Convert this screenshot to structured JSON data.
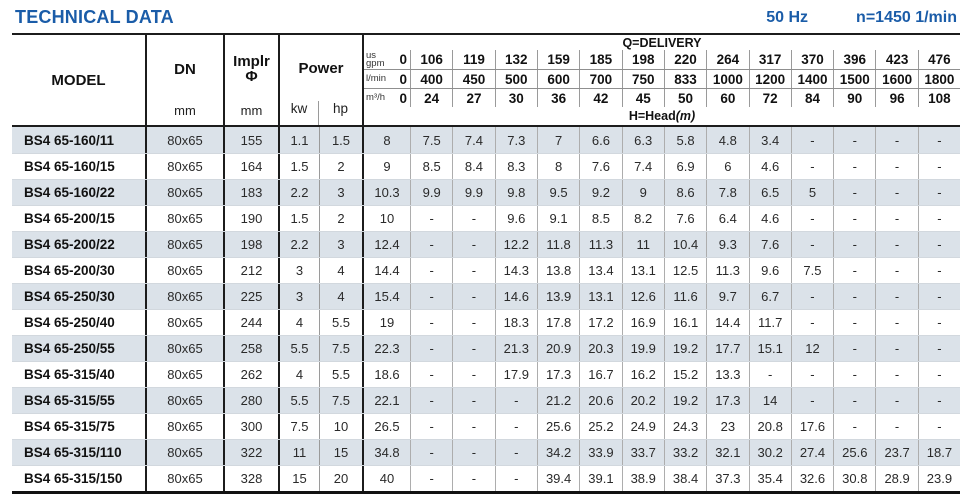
{
  "header": {
    "title": "TECHNICAL DATA",
    "frequency": "50 Hz",
    "speed": "n=1450 1/min"
  },
  "table": {
    "model_label": "MODEL",
    "dn_label": "DN",
    "dn_unit": "mm",
    "impeller_label": "Implr",
    "impeller_symbol": "Φ",
    "impeller_unit": "mm",
    "power_label": "Power",
    "power_unit_kw": "kw",
    "power_unit_hp": "hp",
    "delivery_label": "Q=DELIVERY",
    "head_label": "H=Head",
    "head_unit": "(m)",
    "flow_units": [
      {
        "top": "us",
        "label": "gpm",
        "zero": "0",
        "values": [
          "106",
          "119",
          "132",
          "159",
          "185",
          "198",
          "220",
          "264",
          "317",
          "370",
          "396",
          "423",
          "476"
        ]
      },
      {
        "top": "",
        "label": "l/min",
        "zero": "0",
        "values": [
          "400",
          "450",
          "500",
          "600",
          "700",
          "750",
          "833",
          "1000",
          "1200",
          "1400",
          "1500",
          "1600",
          "1800"
        ]
      },
      {
        "top": "",
        "label": "m³/h",
        "zero": "0",
        "values": [
          "24",
          "27",
          "30",
          "36",
          "42",
          "45",
          "50",
          "60",
          "72",
          "84",
          "90",
          "96",
          "108"
        ]
      }
    ],
    "rows": [
      {
        "model": "BS4 65-160/11",
        "dn": "80x65",
        "implr": "155",
        "kw": "1.1",
        "hp": "1.5",
        "head": [
          "8",
          "7.5",
          "7.4",
          "7.3",
          "7",
          "6.6",
          "6.3",
          "5.8",
          "4.8",
          "3.4",
          "-",
          "-",
          "-",
          "-"
        ]
      },
      {
        "model": "BS4 65-160/15",
        "dn": "80x65",
        "implr": "164",
        "kw": "1.5",
        "hp": "2",
        "head": [
          "9",
          "8.5",
          "8.4",
          "8.3",
          "8",
          "7.6",
          "7.4",
          "6.9",
          "6",
          "4.6",
          "-",
          "-",
          "-",
          "-"
        ]
      },
      {
        "model": "BS4 65-160/22",
        "dn": "80x65",
        "implr": "183",
        "kw": "2.2",
        "hp": "3",
        "head": [
          "10.3",
          "9.9",
          "9.9",
          "9.8",
          "9.5",
          "9.2",
          "9",
          "8.6",
          "7.8",
          "6.5",
          "5",
          "-",
          "-",
          "-"
        ]
      },
      {
        "model": "BS4 65-200/15",
        "dn": "80x65",
        "implr": "190",
        "kw": "1.5",
        "hp": "2",
        "head": [
          "10",
          "-",
          "-",
          "9.6",
          "9.1",
          "8.5",
          "8.2",
          "7.6",
          "6.4",
          "4.6",
          "-",
          "-",
          "-",
          "-"
        ]
      },
      {
        "model": "BS4 65-200/22",
        "dn": "80x65",
        "implr": "198",
        "kw": "2.2",
        "hp": "3",
        "head": [
          "12.4",
          "-",
          "-",
          "12.2",
          "11.8",
          "11.3",
          "11",
          "10.4",
          "9.3",
          "7.6",
          "-",
          "-",
          "-",
          "-"
        ]
      },
      {
        "model": "BS4 65-200/30",
        "dn": "80x65",
        "implr": "212",
        "kw": "3",
        "hp": "4",
        "head": [
          "14.4",
          "-",
          "-",
          "14.3",
          "13.8",
          "13.4",
          "13.1",
          "12.5",
          "11.3",
          "9.6",
          "7.5",
          "-",
          "-",
          "-"
        ]
      },
      {
        "model": "BS4 65-250/30",
        "dn": "80x65",
        "implr": "225",
        "kw": "3",
        "hp": "4",
        "head": [
          "15.4",
          "-",
          "-",
          "14.6",
          "13.9",
          "13.1",
          "12.6",
          "11.6",
          "9.7",
          "6.7",
          "-",
          "-",
          "-",
          "-"
        ]
      },
      {
        "model": "BS4 65-250/40",
        "dn": "80x65",
        "implr": "244",
        "kw": "4",
        "hp": "5.5",
        "head": [
          "19",
          "-",
          "-",
          "18.3",
          "17.8",
          "17.2",
          "16.9",
          "16.1",
          "14.4",
          "11.7",
          "-",
          "-",
          "-",
          "-"
        ]
      },
      {
        "model": "BS4 65-250/55",
        "dn": "80x65",
        "implr": "258",
        "kw": "5.5",
        "hp": "7.5",
        "head": [
          "22.3",
          "-",
          "-",
          "21.3",
          "20.9",
          "20.3",
          "19.9",
          "19.2",
          "17.7",
          "15.1",
          "12",
          "-",
          "-",
          "-"
        ]
      },
      {
        "model": "BS4 65-315/40",
        "dn": "80x65",
        "implr": "262",
        "kw": "4",
        "hp": "5.5",
        "head": [
          "18.6",
          "-",
          "-",
          "17.9",
          "17.3",
          "16.7",
          "16.2",
          "15.2",
          "13.3",
          "-",
          "-",
          "-",
          "-",
          "-"
        ]
      },
      {
        "model": "BS4 65-315/55",
        "dn": "80x65",
        "implr": "280",
        "kw": "5.5",
        "hp": "7.5",
        "head": [
          "22.1",
          "-",
          "-",
          "-",
          "21.2",
          "20.6",
          "20.2",
          "19.2",
          "17.3",
          "14",
          "-",
          "-",
          "-",
          "-"
        ]
      },
      {
        "model": "BS4 65-315/75",
        "dn": "80x65",
        "implr": "300",
        "kw": "7.5",
        "hp": "10",
        "head": [
          "26.5",
          "-",
          "-",
          "-",
          "25.6",
          "25.2",
          "24.9",
          "24.3",
          "23",
          "20.8",
          "17.6",
          "-",
          "-",
          "-"
        ]
      },
      {
        "model": "BS4 65-315/110",
        "dn": "80x65",
        "implr": "322",
        "kw": "11",
        "hp": "15",
        "head": [
          "34.8",
          "-",
          "-",
          "-",
          "34.2",
          "33.9",
          "33.7",
          "33.2",
          "32.1",
          "30.2",
          "27.4",
          "25.6",
          "23.7",
          "18.7"
        ]
      },
      {
        "model": "BS4 65-315/150",
        "dn": "80x65",
        "implr": "328",
        "kw": "15",
        "hp": "20",
        "head": [
          "40",
          "-",
          "-",
          "-",
          "39.4",
          "39.1",
          "38.9",
          "38.4",
          "37.3",
          "35.4",
          "32.6",
          "30.8",
          "28.9",
          "23.9"
        ]
      }
    ]
  },
  "colors": {
    "accent_blue": "#1a5ca8",
    "row_stripe": "#dbe2e9"
  }
}
